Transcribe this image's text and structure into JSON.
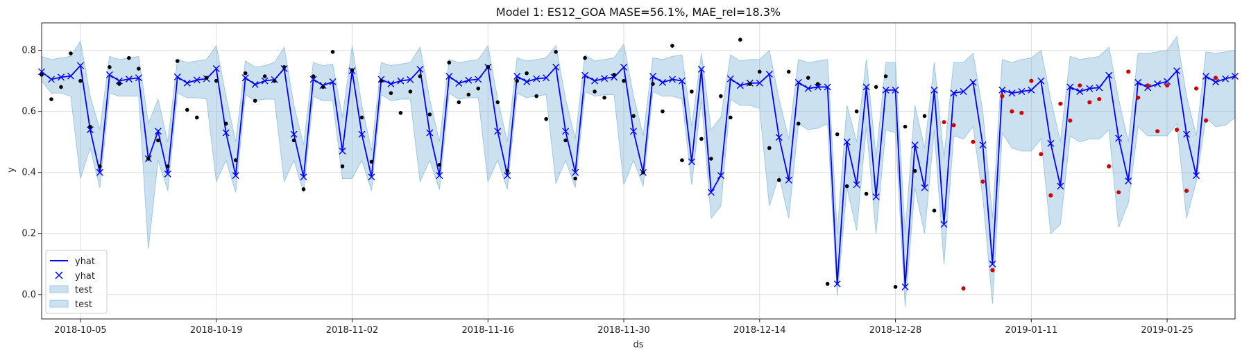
{
  "chart_data": {
    "type": "line",
    "title": "Model 1: ES12_GOA MASE=56.1%, MAE_rel=18.3%",
    "xlabel": "ds",
    "ylabel": "y",
    "x_start": "2018-10-01",
    "x_end": "2019-02-01",
    "xlim": [
      "2018-10-01",
      "2019-02-01"
    ],
    "ylim": [
      -0.08,
      0.89
    ],
    "x_ticks": [
      "2018-10-05",
      "2018-10-19",
      "2018-11-02",
      "2018-11-16",
      "2018-11-30",
      "2018-12-14",
      "2018-12-28",
      "2019-01-11",
      "2019-01-25"
    ],
    "y_ticks": [
      "0.0",
      "0.2",
      "0.4",
      "0.6",
      "0.8"
    ],
    "grid": true,
    "legend": {
      "placement": "lower-left",
      "entries": [
        {
          "label": "yhat",
          "kind": "line"
        },
        {
          "label": "yhat",
          "kind": "marker"
        },
        {
          "label": "test",
          "kind": "band"
        },
        {
          "label": "test",
          "kind": "band"
        }
      ]
    },
    "colors": {
      "yhat": "#0000ff",
      "band_fill": "#6ba8d4",
      "band_edge": "#9fc8e2",
      "train": "#000000",
      "test": "#cc0000",
      "grid": "#dddddd"
    },
    "series": [
      {
        "name": "yhat",
        "values": [
          0.73,
          0.705,
          0.712,
          0.716,
          0.75,
          0.54,
          0.4,
          0.72,
          0.7,
          0.706,
          0.71,
          0.445,
          0.535,
          0.395,
          0.713,
          0.693,
          0.703,
          0.707,
          0.74,
          0.53,
          0.39,
          0.71,
          0.688,
          0.7,
          0.704,
          0.74,
          0.525,
          0.385,
          0.705,
          0.685,
          0.697,
          0.47,
          0.733,
          0.525,
          0.385,
          0.705,
          0.69,
          0.7,
          0.704,
          0.738,
          0.53,
          0.39,
          0.715,
          0.692,
          0.702,
          0.705,
          0.745,
          0.535,
          0.39,
          0.715,
          0.697,
          0.707,
          0.71,
          0.745,
          0.535,
          0.4,
          0.718,
          0.7,
          0.708,
          0.712,
          0.745,
          0.535,
          0.4,
          0.715,
          0.695,
          0.705,
          0.7,
          0.435,
          0.738,
          0.335,
          0.39,
          0.707,
          0.685,
          0.693,
          0.693,
          0.722,
          0.515,
          0.375,
          0.695,
          0.675,
          0.68,
          0.68,
          0.035,
          0.5,
          0.36,
          0.68,
          0.32,
          0.67,
          0.67,
          0.025,
          0.49,
          0.35,
          0.67,
          0.23,
          0.66,
          0.665,
          0.695,
          0.49,
          0.1,
          0.67,
          0.66,
          0.665,
          0.67,
          0.7,
          0.495,
          0.355,
          0.68,
          0.665,
          0.675,
          0.678,
          0.718,
          0.512,
          0.372,
          0.695,
          0.678,
          0.69,
          0.698,
          0.733,
          0.525,
          0.39,
          0.715,
          0.696,
          0.707,
          0.715
        ]
      },
      {
        "name": "band",
        "upper": [
          0.78,
          0.77,
          0.775,
          0.78,
          0.83,
          0.65,
          0.54,
          0.78,
          0.77,
          0.775,
          0.78,
          0.56,
          0.64,
          0.5,
          0.77,
          0.76,
          0.765,
          0.77,
          0.815,
          0.65,
          0.5,
          0.765,
          0.745,
          0.75,
          0.76,
          0.81,
          0.62,
          0.49,
          0.76,
          0.75,
          0.755,
          0.58,
          0.815,
          0.62,
          0.47,
          0.76,
          0.75,
          0.755,
          0.76,
          0.81,
          0.64,
          0.5,
          0.77,
          0.76,
          0.765,
          0.77,
          0.815,
          0.64,
          0.5,
          0.775,
          0.765,
          0.77,
          0.775,
          0.815,
          0.64,
          0.51,
          0.785,
          0.765,
          0.77,
          0.775,
          0.82,
          0.65,
          0.52,
          0.775,
          0.77,
          0.78,
          0.785,
          0.55,
          0.79,
          0.54,
          0.58,
          0.785,
          0.765,
          0.77,
          0.77,
          0.8,
          0.64,
          0.51,
          0.77,
          0.76,
          0.765,
          0.77,
          0.2,
          0.62,
          0.5,
          0.77,
          0.45,
          0.76,
          0.76,
          0.2,
          0.62,
          0.48,
          0.76,
          0.45,
          0.76,
          0.76,
          0.79,
          0.6,
          0.25,
          0.77,
          0.76,
          0.77,
          0.775,
          0.8,
          0.64,
          0.5,
          0.78,
          0.77,
          0.775,
          0.78,
          0.81,
          0.64,
          0.5,
          0.79,
          0.79,
          0.795,
          0.8,
          0.845,
          0.65,
          0.52,
          0.795,
          0.79,
          0.795,
          0.8
        ],
        "lower": [
          0.7,
          0.66,
          0.66,
          0.65,
          0.38,
          0.48,
          0.35,
          0.66,
          0.65,
          0.65,
          0.65,
          0.15,
          0.44,
          0.34,
          0.66,
          0.645,
          0.645,
          0.64,
          0.37,
          0.44,
          0.335,
          0.655,
          0.635,
          0.64,
          0.64,
          0.37,
          0.44,
          0.335,
          0.65,
          0.635,
          0.635,
          0.38,
          0.38,
          0.44,
          0.34,
          0.655,
          0.635,
          0.64,
          0.64,
          0.37,
          0.44,
          0.345,
          0.66,
          0.64,
          0.645,
          0.645,
          0.37,
          0.44,
          0.345,
          0.66,
          0.645,
          0.65,
          0.655,
          0.365,
          0.44,
          0.35,
          0.665,
          0.65,
          0.655,
          0.655,
          0.36,
          0.44,
          0.355,
          0.665,
          0.65,
          0.65,
          0.64,
          0.36,
          0.64,
          0.25,
          0.29,
          0.64,
          0.62,
          0.62,
          0.61,
          0.29,
          0.39,
          0.25,
          0.56,
          0.54,
          0.545,
          0.56,
          -0.005,
          0.35,
          0.21,
          0.55,
          0.2,
          0.54,
          0.53,
          -0.04,
          0.35,
          0.2,
          0.54,
          0.1,
          0.52,
          0.51,
          0.55,
          0.32,
          -0.03,
          0.53,
          0.48,
          0.47,
          0.47,
          0.51,
          0.2,
          0.23,
          0.52,
          0.5,
          0.51,
          0.51,
          0.54,
          0.22,
          0.3,
          0.55,
          0.52,
          0.52,
          0.52,
          0.56,
          0.25,
          0.37,
          0.58,
          0.55,
          0.555,
          0.58
        ]
      },
      {
        "name": "train",
        "x_index": [
          0,
          1,
          2,
          3,
          4,
          5,
          6,
          7,
          8,
          9,
          10,
          11,
          12,
          13,
          14,
          15,
          16,
          17,
          18,
          19,
          20,
          21,
          22,
          23,
          24,
          25,
          26,
          27,
          28,
          29,
          30,
          31,
          32,
          33,
          34,
          35,
          36,
          37,
          38,
          39,
          40,
          41,
          42,
          43,
          44,
          45,
          46,
          47,
          48,
          49,
          50,
          51,
          52,
          53,
          54,
          55,
          56,
          57,
          58,
          59,
          60,
          61,
          62,
          63,
          64,
          65,
          66,
          67,
          68,
          69,
          70,
          71,
          72,
          73,
          74,
          75,
          76,
          77,
          78,
          79,
          80,
          81,
          82,
          83,
          84,
          85,
          86,
          87,
          88,
          89,
          90,
          91,
          92
        ],
        "values": [
          0.72,
          0.64,
          0.68,
          0.79,
          0.7,
          0.55,
          0.42,
          0.745,
          0.69,
          0.775,
          0.74,
          0.445,
          0.505,
          0.42,
          0.765,
          0.605,
          0.58,
          0.71,
          0.7,
          0.56,
          0.44,
          0.725,
          0.635,
          0.715,
          0.7,
          0.745,
          0.505,
          0.345,
          0.715,
          0.68,
          0.795,
          0.42,
          0.735,
          0.58,
          0.435,
          0.7,
          0.66,
          0.595,
          0.665,
          0.715,
          0.59,
          0.425,
          0.76,
          0.63,
          0.655,
          0.675,
          0.745,
          0.63,
          0.405,
          0.7,
          0.725,
          0.65,
          0.575,
          0.795,
          0.505,
          0.38,
          0.775,
          0.665,
          0.645,
          0.72,
          0.7,
          0.585,
          0.4,
          0.69,
          0.6,
          0.815,
          0.44,
          0.665,
          0.51,
          0.445,
          0.65,
          0.58,
          0.835,
          0.69,
          0.73,
          0.48,
          0.375,
          0.73,
          0.56,
          0.71,
          0.69,
          0.035,
          0.525,
          0.355,
          0.6,
          0.33,
          0.68,
          0.715,
          0.025,
          0.55,
          0.405,
          0.585,
          0.275
        ]
      },
      {
        "name": "test",
        "x_index": [
          93,
          94,
          95,
          96,
          97,
          98,
          99,
          100,
          101,
          102,
          103,
          104,
          105,
          106,
          107,
          108,
          109,
          110,
          111,
          112,
          113,
          114,
          115,
          116,
          117,
          118,
          119,
          120,
          121
        ],
        "values": [
          0.565,
          0.555,
          0.02,
          0.5,
          0.37,
          0.08,
          0.65,
          0.6,
          0.595,
          0.7,
          0.46,
          0.325,
          0.625,
          0.57,
          0.685,
          0.63,
          0.64,
          0.42,
          0.335,
          0.73,
          0.645,
          0.685,
          0.535,
          0.685,
          0.54,
          0.34,
          0.675,
          0.57,
          0.71
        ]
      }
    ]
  }
}
